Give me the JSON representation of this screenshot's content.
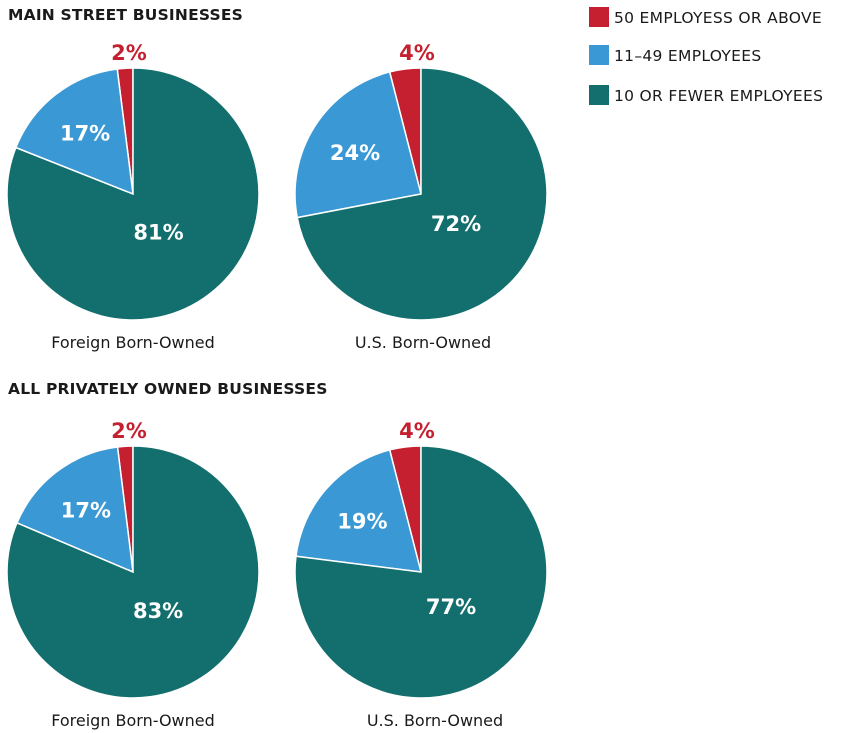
{
  "legend": [
    {
      "label": "50 EMPLOYESS OR ABOVE",
      "color": "#c4202f"
    },
    {
      "label": "11–49 EMPLOYEES",
      "color": "#3a98d4"
    },
    {
      "label": "10 OR FEWER EMPLOYEES",
      "color": "#136f6d"
    }
  ],
  "chart_data": [
    {
      "type": "pie",
      "title": "MAIN STREET BUSINESSES",
      "pies": [
        {
          "caption": "Foreign Born-Owned",
          "slices": [
            {
              "label": "50 EMPLOYESS OR ABOVE",
              "value": 2,
              "text": "2%"
            },
            {
              "label": "11–49 EMPLOYEES",
              "value": 17,
              "text": "17%"
            },
            {
              "label": "10 OR FEWER EMPLOYEES",
              "value": 81,
              "text": "81%"
            }
          ]
        },
        {
          "caption": "U.S. Born-Owned",
          "slices": [
            {
              "label": "50 EMPLOYESS OR ABOVE",
              "value": 4,
              "text": "4%"
            },
            {
              "label": "11–49 EMPLOYEES",
              "value": 24,
              "text": "24%"
            },
            {
              "label": "10 OR FEWER EMPLOYEES",
              "value": 72,
              "text": "72%"
            }
          ]
        }
      ]
    },
    {
      "type": "pie",
      "title": "ALL PRIVATELY OWNED BUSINESSES",
      "pies": [
        {
          "caption": "Foreign Born-Owned",
          "slices": [
            {
              "label": "50 EMPLOYESS OR ABOVE",
              "value": 2,
              "text": "2%"
            },
            {
              "label": "11–49 EMPLOYEES",
              "value": 17,
              "text": "17%"
            },
            {
              "label": "10 OR FEWER EMPLOYEES",
              "value": 83,
              "text": "83%"
            }
          ]
        },
        {
          "caption": "U.S. Born-Owned",
          "slices": [
            {
              "label": "50 EMPLOYESS OR ABOVE",
              "value": 4,
              "text": "4%"
            },
            {
              "label": "11–49 EMPLOYEES",
              "value": 19,
              "text": "19%"
            },
            {
              "label": "10 OR FEWER EMPLOYEES",
              "value": 77,
              "text": "77%"
            }
          ]
        }
      ]
    }
  ]
}
